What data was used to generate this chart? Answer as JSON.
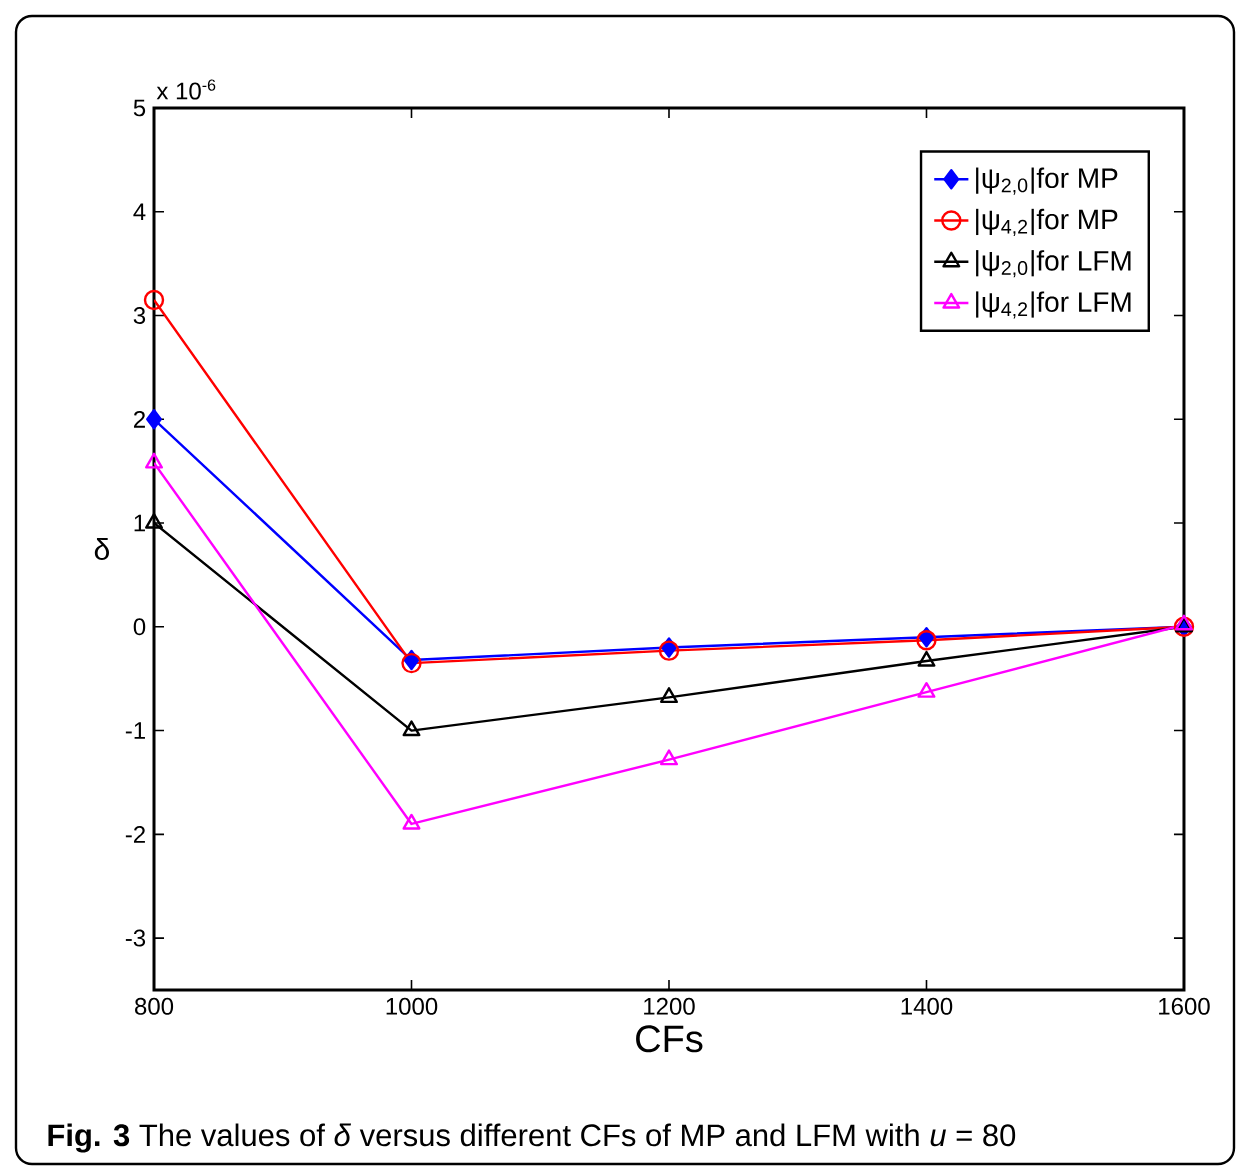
{
  "chart_data": {
    "type": "line",
    "xlabel": "CFs",
    "ylabel": "δ",
    "x": [
      800,
      1000,
      1200,
      1400,
      1600
    ],
    "series": [
      {
        "name": "|ψ$_{2,0}$|for MP",
        "color": "#0000ff",
        "marker": "diamond",
        "values": [
          2.0,
          -0.32,
          -0.2,
          -0.1,
          0
        ]
      },
      {
        "name": "|ψ$_{4,2}$|for MP",
        "color": "#ff0000",
        "marker": "circle",
        "values": [
          3.15,
          -0.35,
          -0.23,
          -0.13,
          0
        ]
      },
      {
        "name": "|ψ$_{2,0}$|for LFM",
        "color": "#000000",
        "marker": "triangle",
        "values": [
          1.0,
          -1.0,
          -0.68,
          -0.33,
          0
        ]
      },
      {
        "name": "|ψ$_{4,2}$|for LFM",
        "color": "#ff00ff",
        "marker": "triangle",
        "values": [
          1.58,
          -1.9,
          -1.28,
          -0.63,
          0.02
        ]
      }
    ],
    "xlim": [
      800,
      1600
    ],
    "xticks": [
      800,
      1000,
      1200,
      1400,
      1600
    ],
    "ylim": [
      -3.5,
      5
    ],
    "yticks": [
      -3,
      -2,
      -1,
      0,
      1,
      2,
      3,
      4,
      5
    ],
    "legend": "top right",
    "grid": false,
    "line_style": "solid",
    "annotations": [
      "x 10$^{-6}$",
      "**Fig. 3** The values of *δ* versus different CFs of MP and LFM with *u* = 80"
    ]
  }
}
